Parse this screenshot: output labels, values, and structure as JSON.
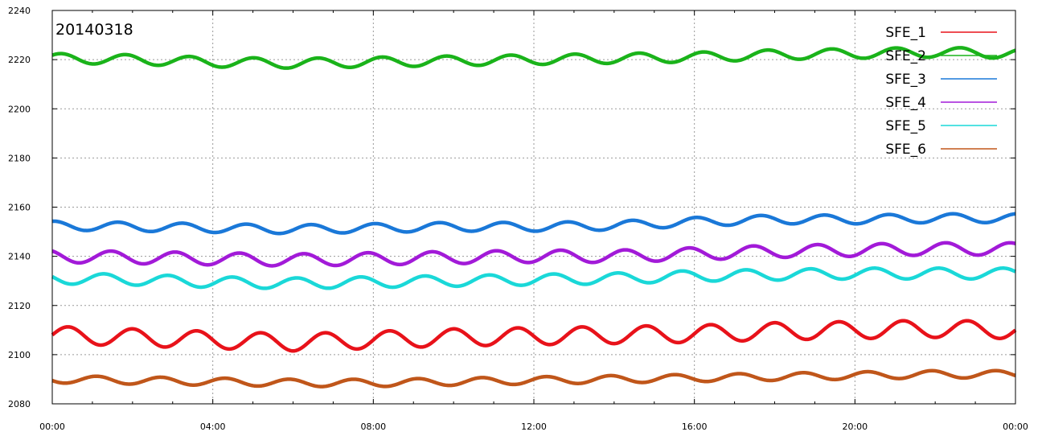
{
  "chart_data": {
    "type": "line",
    "title": "",
    "annotation": "20140318",
    "xlabel": "",
    "ylabel": "",
    "xlim_hours": [
      0,
      24
    ],
    "ylim": [
      2080,
      2240
    ],
    "y_ticks": [
      2080,
      2100,
      2120,
      2140,
      2160,
      2180,
      2200,
      2220,
      2240
    ],
    "x_ticks": [
      "00:00",
      "04:00",
      "08:00",
      "12:00",
      "16:00",
      "20:00",
      "00:00"
    ],
    "grid": true,
    "legend_position": "top-right",
    "series": [
      {
        "name": "SFE_1",
        "color": "#e8121a",
        "x_hours": [
          0,
          2,
          4,
          6,
          8,
          10,
          12,
          14,
          16,
          18,
          20,
          22,
          24
        ],
        "base": [
          2108,
          2107,
          2106,
          2105,
          2106,
          2107,
          2107.5,
          2108,
          2108.5,
          2109.5,
          2110,
          2110.5,
          2110
        ],
        "amplitude": 3.5,
        "period_hours": 1.6
      },
      {
        "name": "SFE_2",
        "color": "#1ab31a",
        "x_hours": [
          0,
          2,
          4,
          6,
          8,
          10,
          12,
          14,
          16,
          18,
          20,
          22,
          24
        ],
        "base": [
          2220.5,
          2220,
          2219,
          2218.5,
          2219,
          2219.5,
          2220,
          2220.5,
          2221,
          2222,
          2222.5,
          2223,
          2222.5
        ],
        "amplitude": 2,
        "period_hours": 1.6
      },
      {
        "name": "SFE_3",
        "color": "#1a78d8",
        "x_hours": [
          0,
          2,
          4,
          6,
          8,
          10,
          12,
          14,
          16,
          18,
          20,
          22,
          24
        ],
        "base": [
          2152.5,
          2152,
          2151.5,
          2151,
          2151.5,
          2152,
          2152,
          2152.5,
          2154,
          2155,
          2155,
          2155.5,
          2155.5
        ],
        "amplitude": 1.8,
        "period_hours": 1.6
      },
      {
        "name": "SFE_4",
        "color": "#a21ad8",
        "x_hours": [
          0,
          2,
          4,
          6,
          8,
          10,
          12,
          14,
          16,
          18,
          20,
          22,
          24
        ],
        "base": [
          2140,
          2139.5,
          2139,
          2138.5,
          2139,
          2139.5,
          2140,
          2140,
          2141,
          2142,
          2142.5,
          2143,
          2143
        ],
        "amplitude": 2.5,
        "period_hours": 1.6
      },
      {
        "name": "SFE_5",
        "color": "#1ad8d8",
        "x_hours": [
          0,
          2,
          4,
          6,
          8,
          10,
          12,
          14,
          16,
          18,
          20,
          22,
          24
        ],
        "base": [
          2131,
          2130.5,
          2129.5,
          2129,
          2129.5,
          2130,
          2130.5,
          2131,
          2132,
          2132.5,
          2133,
          2133,
          2133
        ],
        "amplitude": 2.2,
        "period_hours": 1.6
      },
      {
        "name": "SFE_6",
        "color": "#c0561a",
        "x_hours": [
          0,
          2,
          4,
          6,
          8,
          10,
          12,
          14,
          16,
          18,
          20,
          22,
          24
        ],
        "base": [
          2090,
          2089.5,
          2089,
          2088.5,
          2088.5,
          2089,
          2089.5,
          2090,
          2090.5,
          2091,
          2091.5,
          2092,
          2092
        ],
        "amplitude": 1.5,
        "period_hours": 1.6
      }
    ]
  }
}
